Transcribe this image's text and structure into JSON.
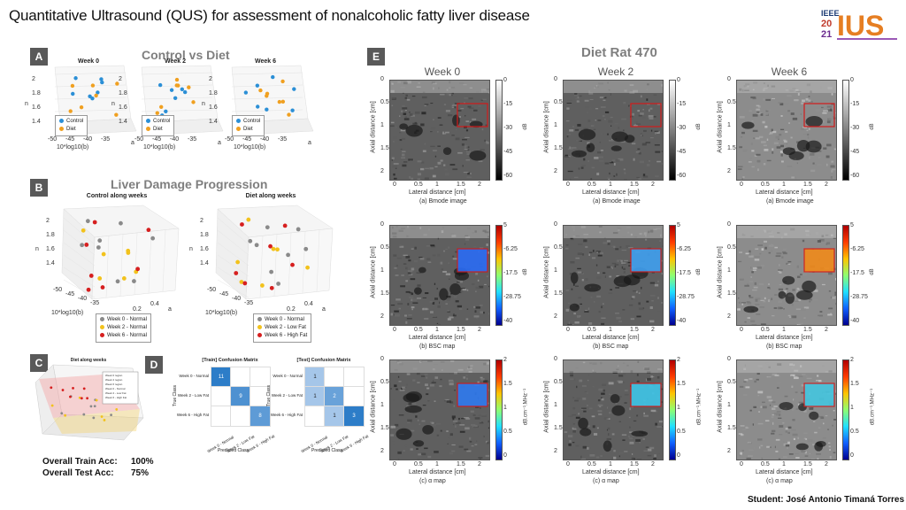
{
  "title": "Quantitative Ultrasound (QUS) for assessment of nonalcoholic fatty liver disease",
  "logo": {
    "brand": "IEEE 2021 IUS",
    "ieee": "IEEE",
    "year_top": "20",
    "year_bottom": "21",
    "ius": "IUS"
  },
  "sections": {
    "A": {
      "tag": "A",
      "heading": "Control vs Diet",
      "plots": [
        {
          "title": "Week 0"
        },
        {
          "title": "Week 2"
        },
        {
          "title": "Week 6"
        }
      ],
      "legend": [
        "Control",
        "Diet"
      ],
      "xlabel": "10*log10(b)",
      "ylabel": "n",
      "zlabel": "a",
      "yticks": [
        "2",
        "1.8",
        "1.6",
        "1.4"
      ],
      "xticks": [
        "-50",
        "-45",
        "-40",
        "-35"
      ]
    },
    "B": {
      "tag": "B",
      "heading": "Liver Damage Progression",
      "plots": [
        {
          "title": "Control along weeks",
          "legend": [
            "Week 0 - Normal",
            "Week 2 - Normal",
            "Week 6 - Normal"
          ]
        },
        {
          "title": "Diet along weeks",
          "legend": [
            "Week 0 - Normal",
            "Week 2 - Low Fat",
            "Week 6 - High Fat"
          ]
        }
      ],
      "xlabel": "10*log10(b)",
      "ylabel": "n",
      "zlabel": "a",
      "yticks": [
        "2",
        "1.8",
        "1.6",
        "1.4"
      ],
      "xticks": [
        "-50",
        "-45",
        "-40",
        "-35"
      ],
      "zticks": [
        "0.2",
        "0.4"
      ]
    },
    "C": {
      "tag": "C",
      "plot_title": "Diet along weeks",
      "train_acc_label": "Overall Train Acc:",
      "train_acc": "100%",
      "test_acc_label": "Overall Test Acc:",
      "test_acc": "75%"
    },
    "D": {
      "tag": "D",
      "matrices": [
        {
          "title": "[Train] Confusion Matrix",
          "cells": [
            [
              11,
              0,
              0
            ],
            [
              0,
              9,
              0
            ],
            [
              0,
              0,
              8
            ]
          ]
        },
        {
          "title": "[Test] Confusion Matrix",
          "cells": [
            [
              1,
              0,
              0
            ],
            [
              1,
              2,
              0
            ],
            [
              0,
              1,
              3
            ]
          ]
        }
      ],
      "classes": [
        "Week 0 - Normal",
        "Week 2 - Low Fat",
        "Week 6 - High Fat"
      ],
      "ylabel": "True Class",
      "xlabel": "Predicted Class"
    },
    "E": {
      "tag": "E",
      "heading": "Diet Rat 470",
      "columns": [
        "Week 0",
        "Week 2",
        "Week 6"
      ],
      "rows": [
        {
          "caption": "(a) Bmode image",
          "cbar_ticks": [
            "0",
            "-15",
            "-30",
            "-45",
            "-60"
          ],
          "cbar_label": "dB"
        },
        {
          "caption": "(b) BSC map",
          "cbar_ticks": [
            "5",
            "-6.25",
            "-17.5",
            "-28.75",
            "-40"
          ],
          "cbar_label": "dB"
        },
        {
          "caption": "(c) α map",
          "cbar_ticks": [
            "2",
            "1.5",
            "1",
            "0.5",
            "0"
          ],
          "cbar_label": "dB.cm⁻¹.MHz⁻¹"
        }
      ],
      "xlabel": "Lateral distance [cm]",
      "ylabel": "Axial distance [cm]",
      "xticks": [
        "0",
        "0.5",
        "1",
        "1.5",
        "2"
      ],
      "yticks": [
        "0",
        "0.5",
        "1",
        "1.5",
        "2"
      ],
      "roi_color": "#d21a1a"
    }
  },
  "student": "Student: José Antonio Timaná Torres"
}
